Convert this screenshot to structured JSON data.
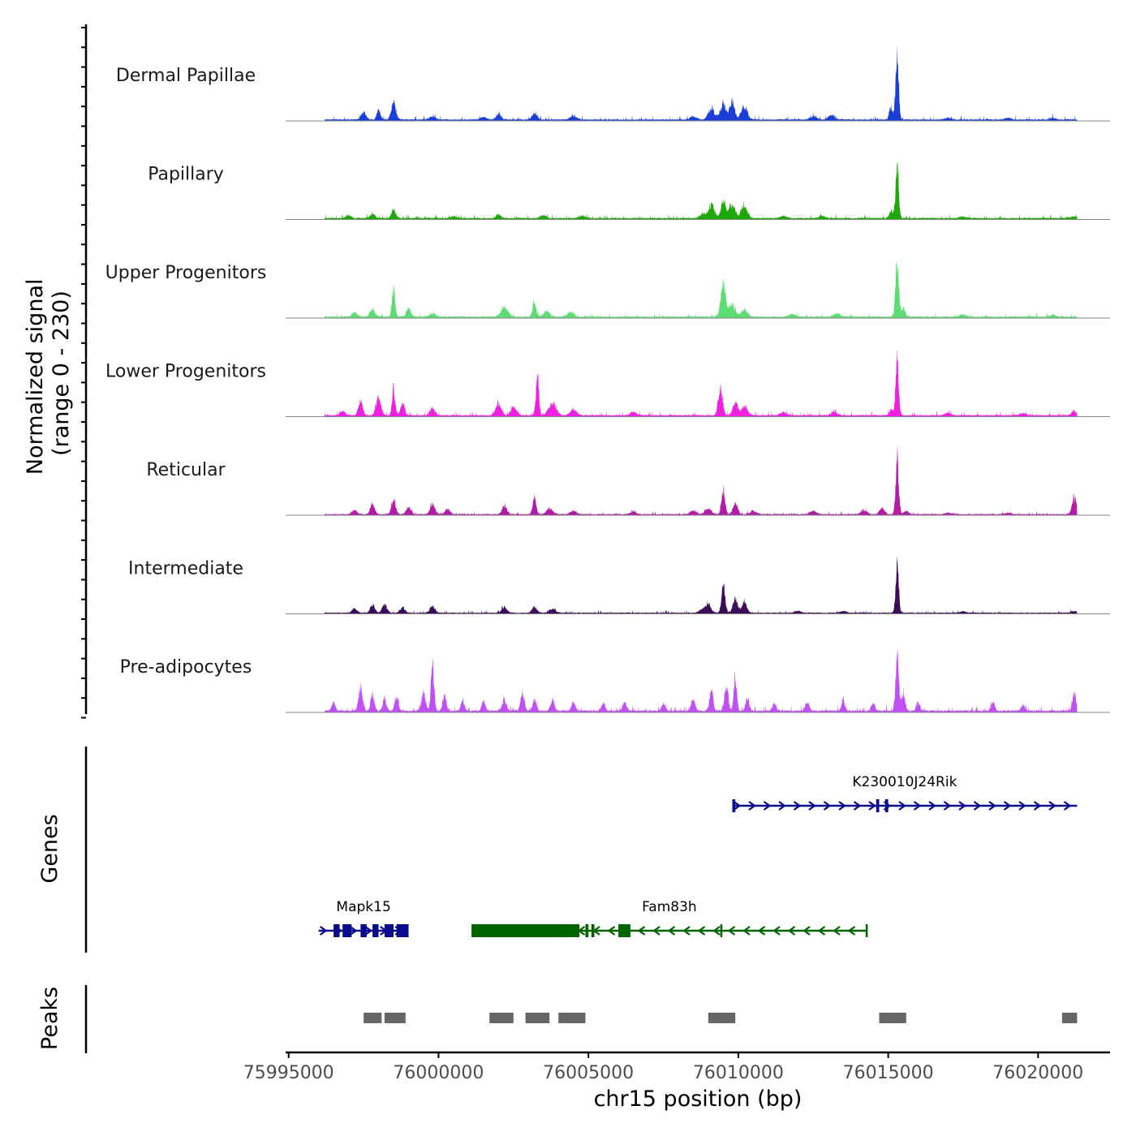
{
  "chart_data": {
    "type": "area",
    "title": "",
    "xlabel": "chr15 position (bp)",
    "ylabel": "Normalized signal\n(range 0 - 230)",
    "ylabel_lines": [
      "Normalized signal",
      "(range 0 - 230)"
    ],
    "ylim": [
      0,
      230
    ],
    "xlim": [
      75994900,
      76022400
    ],
    "x_ticks": [
      75995000,
      76000000,
      76005000,
      76010000,
      76015000,
      76020000
    ],
    "x_tick_labels": [
      "75995000",
      "76000000",
      "76005000",
      "76010000",
      "76015000",
      "76020000"
    ],
    "signal_start": 75996200,
    "signal_end": 76021300,
    "series": [
      {
        "name": "Dermal Papillae",
        "color": "#1B3FD6",
        "peaks": [
          [
            75997500,
            25,
            80
          ],
          [
            75998000,
            35,
            60
          ],
          [
            75998500,
            55,
            80
          ],
          [
            75999800,
            10,
            100
          ],
          [
            76001500,
            8,
            100
          ],
          [
            76002000,
            20,
            80
          ],
          [
            76003200,
            20,
            80
          ],
          [
            76004500,
            12,
            100
          ],
          [
            76008500,
            10,
            100
          ],
          [
            76009100,
            35,
            100
          ],
          [
            76009500,
            55,
            100
          ],
          [
            76009800,
            60,
            80
          ],
          [
            76010200,
            45,
            100
          ],
          [
            76012500,
            12,
            100
          ],
          [
            76013100,
            15,
            100
          ],
          [
            76015300,
            230,
            50
          ],
          [
            76015100,
            40,
            60
          ],
          [
            76017000,
            6,
            100
          ],
          [
            76019000,
            5,
            100
          ],
          [
            76020500,
            4,
            100
          ]
        ],
        "baseline": 3
      },
      {
        "name": "Papillary",
        "color": "#1FA80A",
        "peaks": [
          [
            75997000,
            10,
            80
          ],
          [
            75997800,
            15,
            80
          ],
          [
            75998500,
            28,
            70
          ],
          [
            76000500,
            6,
            100
          ],
          [
            76002000,
            12,
            80
          ],
          [
            76003500,
            10,
            100
          ],
          [
            76004800,
            8,
            100
          ],
          [
            76008800,
            12,
            100
          ],
          [
            76009100,
            45,
            100
          ],
          [
            76009500,
            55,
            80
          ],
          [
            76009800,
            45,
            100
          ],
          [
            76010200,
            40,
            100
          ],
          [
            76011500,
            8,
            100
          ],
          [
            76012800,
            8,
            100
          ],
          [
            76015300,
            190,
            50
          ],
          [
            76015100,
            25,
            60
          ],
          [
            76017500,
            5,
            100
          ],
          [
            76021200,
            6,
            100
          ]
        ],
        "baseline": 3
      },
      {
        "name": "Upper Progenitors",
        "color": "#5CDD73",
        "peaks": [
          [
            75997200,
            15,
            80
          ],
          [
            75997800,
            25,
            80
          ],
          [
            75998500,
            100,
            50
          ],
          [
            75999000,
            30,
            70
          ],
          [
            75999800,
            10,
            100
          ],
          [
            76002200,
            30,
            120
          ],
          [
            76003200,
            50,
            60
          ],
          [
            76003600,
            18,
            100
          ],
          [
            76004400,
            15,
            100
          ],
          [
            76009500,
            115,
            80
          ],
          [
            76009800,
            40,
            100
          ],
          [
            76010200,
            25,
            100
          ],
          [
            76011800,
            10,
            100
          ],
          [
            76013300,
            12,
            100
          ],
          [
            76015300,
            200,
            50
          ],
          [
            76015500,
            30,
            60
          ],
          [
            76017500,
            8,
            100
          ],
          [
            76020500,
            5,
            100
          ]
        ],
        "baseline": 3
      },
      {
        "name": "Lower Progenitors",
        "color": "#F020E0",
        "peaks": [
          [
            75996800,
            15,
            80
          ],
          [
            75997400,
            50,
            70
          ],
          [
            75998000,
            55,
            80
          ],
          [
            75998500,
            90,
            50
          ],
          [
            75998800,
            40,
            70
          ],
          [
            75999800,
            25,
            80
          ],
          [
            76002000,
            42,
            90
          ],
          [
            76002500,
            30,
            90
          ],
          [
            76003300,
            130,
            50
          ],
          [
            76003800,
            45,
            120
          ],
          [
            76004500,
            20,
            100
          ],
          [
            76006500,
            12,
            100
          ],
          [
            76009400,
            95,
            70
          ],
          [
            76009900,
            45,
            80
          ],
          [
            76010200,
            30,
            100
          ],
          [
            76011500,
            10,
            100
          ],
          [
            76013200,
            12,
            100
          ],
          [
            76015300,
            200,
            50
          ],
          [
            76015100,
            20,
            60
          ],
          [
            76017000,
            8,
            100
          ],
          [
            76019500,
            6,
            100
          ],
          [
            76021200,
            15,
            80
          ]
        ],
        "baseline": 3
      },
      {
        "name": "Reticular",
        "color": "#B21AA8",
        "peaks": [
          [
            75997200,
            15,
            80
          ],
          [
            75997800,
            35,
            70
          ],
          [
            75998500,
            50,
            70
          ],
          [
            75999000,
            22,
            80
          ],
          [
            75999800,
            35,
            80
          ],
          [
            76000300,
            18,
            80
          ],
          [
            76002200,
            28,
            80
          ],
          [
            76003200,
            55,
            60
          ],
          [
            76003700,
            20,
            100
          ],
          [
            76004500,
            12,
            100
          ],
          [
            76006500,
            8,
            100
          ],
          [
            76008500,
            12,
            100
          ],
          [
            76009000,
            20,
            100
          ],
          [
            76009500,
            75,
            60
          ],
          [
            76009900,
            35,
            80
          ],
          [
            76010500,
            10,
            100
          ],
          [
            76012500,
            10,
            100
          ],
          [
            76014200,
            12,
            100
          ],
          [
            76014800,
            22,
            80
          ],
          [
            76015300,
            180,
            50
          ],
          [
            76015600,
            12,
            80
          ],
          [
            76017000,
            5,
            100
          ],
          [
            76019000,
            5,
            100
          ],
          [
            76021200,
            55,
            70
          ]
        ],
        "baseline": 2
      },
      {
        "name": "Intermediate",
        "color": "#3B0D58",
        "peaks": [
          [
            75997200,
            15,
            80
          ],
          [
            75997800,
            30,
            70
          ],
          [
            75998200,
            28,
            80
          ],
          [
            75998800,
            18,
            80
          ],
          [
            75999800,
            22,
            80
          ],
          [
            76002200,
            20,
            80
          ],
          [
            76003200,
            20,
            80
          ],
          [
            76003800,
            14,
            100
          ],
          [
            76008800,
            12,
            100
          ],
          [
            76009000,
            30,
            80
          ],
          [
            76009500,
            90,
            60
          ],
          [
            76009900,
            45,
            80
          ],
          [
            76010200,
            35,
            80
          ],
          [
            76012000,
            6,
            100
          ],
          [
            76013500,
            6,
            100
          ],
          [
            76015300,
            160,
            50
          ],
          [
            76017500,
            5,
            100
          ],
          [
            76021200,
            6,
            100
          ]
        ],
        "baseline": 2
      },
      {
        "name": "Pre-adipocytes",
        "color": "#C050F5",
        "peaks": [
          [
            75996500,
            30,
            60
          ],
          [
            75997400,
            80,
            60
          ],
          [
            75997800,
            55,
            60
          ],
          [
            75998200,
            40,
            60
          ],
          [
            75998600,
            50,
            60
          ],
          [
            75999500,
            60,
            70
          ],
          [
            75999800,
            150,
            50
          ],
          [
            76000200,
            50,
            60
          ],
          [
            76000800,
            30,
            60
          ],
          [
            76001500,
            30,
            60
          ],
          [
            76002200,
            35,
            70
          ],
          [
            76002800,
            60,
            60
          ],
          [
            76003200,
            35,
            60
          ],
          [
            76003800,
            35,
            60
          ],
          [
            76004500,
            30,
            60
          ],
          [
            76005500,
            25,
            60
          ],
          [
            76006200,
            30,
            60
          ],
          [
            76007500,
            25,
            60
          ],
          [
            76008500,
            40,
            60
          ],
          [
            76009100,
            65,
            60
          ],
          [
            76009600,
            90,
            60
          ],
          [
            76009900,
            110,
            50
          ],
          [
            76010300,
            40,
            60
          ],
          [
            76011200,
            25,
            60
          ],
          [
            76012300,
            30,
            60
          ],
          [
            76013500,
            35,
            60
          ],
          [
            76014500,
            25,
            60
          ],
          [
            76015300,
            200,
            50
          ],
          [
            76015500,
            60,
            60
          ],
          [
            76016000,
            25,
            60
          ],
          [
            76018500,
            25,
            60
          ],
          [
            76019500,
            20,
            60
          ],
          [
            76021200,
            60,
            60
          ]
        ],
        "baseline": 4
      }
    ],
    "genes": [
      {
        "name": "K230010J24Rik",
        "strand": "+",
        "start": 76009800,
        "end": 76021300,
        "color": "#0A0A8C",
        "row": 0,
        "exons": [
          [
            76009800,
            76009900
          ],
          [
            76014600,
            76014700
          ],
          [
            76014900,
            76015000
          ]
        ]
      },
      {
        "name": "Mapk15",
        "strand": "+",
        "start": 75996000,
        "end": 75999000,
        "color": "#0A0A8C",
        "row": 1,
        "exons": [
          [
            75996500,
            75996700
          ],
          [
            75996800,
            75997100
          ],
          [
            75997400,
            75997600
          ],
          [
            75997800,
            75998000
          ],
          [
            75998200,
            75998500
          ],
          [
            75998600,
            75999000
          ]
        ]
      },
      {
        "name": "Fam83h",
        "strand": "-",
        "start": 76001100,
        "end": 76014300,
        "color": "#006400",
        "row": 1,
        "exons": [
          [
            76001100,
            76004700
          ],
          [
            76004900,
            76005000
          ],
          [
            76005100,
            76005200
          ],
          [
            76006000,
            76006400
          ],
          [
            76009400,
            76009450
          ],
          [
            76014250,
            76014300
          ]
        ]
      }
    ],
    "peaks_track": {
      "name": "Peaks",
      "color": "#666666",
      "regions": [
        [
          75997500,
          75998100
        ],
        [
          75998200,
          75998900
        ],
        [
          76001700,
          76002500
        ],
        [
          76002900,
          76003700
        ],
        [
          76004000,
          76004900
        ],
        [
          76009000,
          76009900
        ],
        [
          76014700,
          76015600
        ],
        [
          76020800,
          76021300
        ]
      ]
    },
    "section_labels": {
      "genes": "Genes",
      "peaks": "Peaks"
    }
  }
}
